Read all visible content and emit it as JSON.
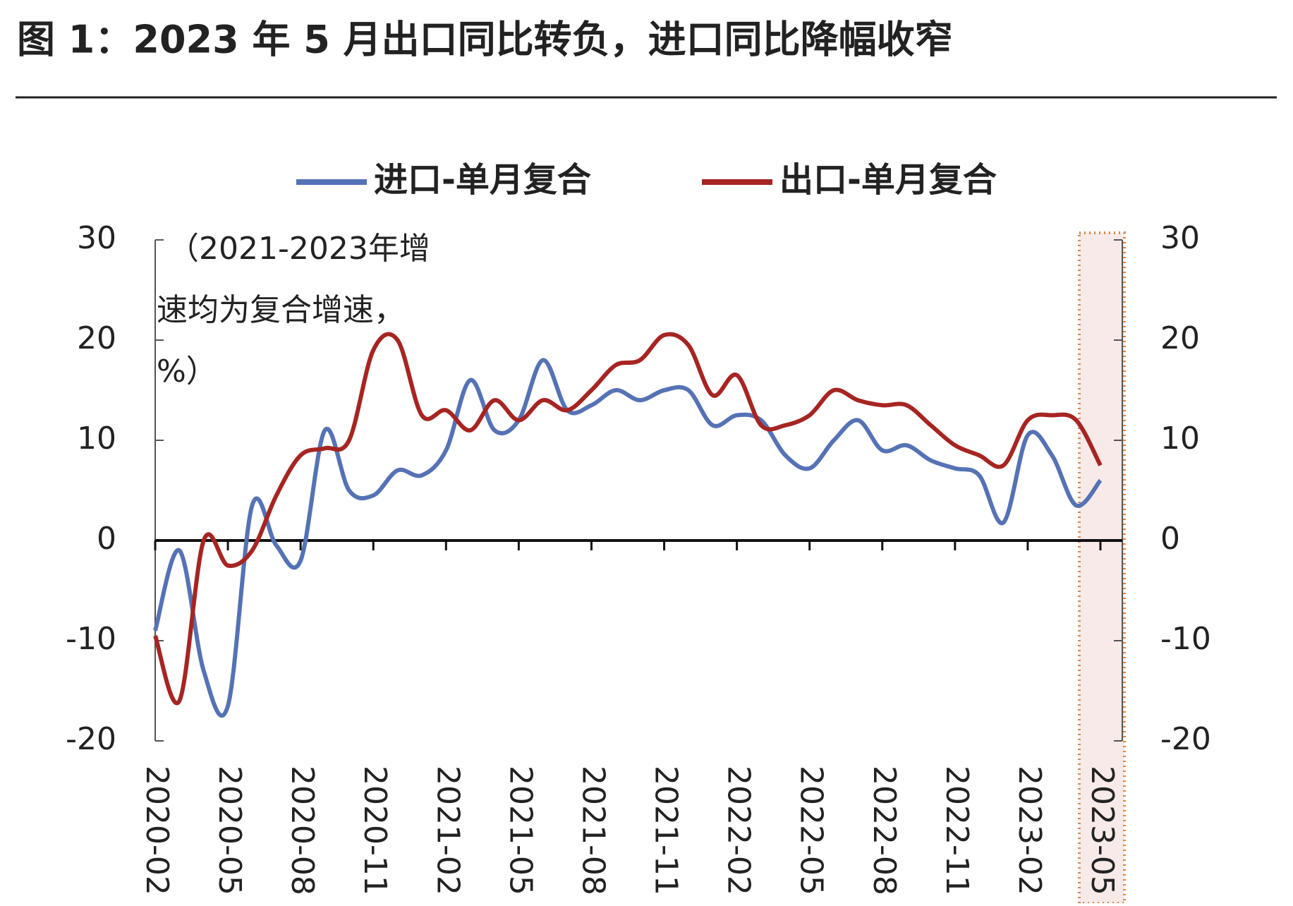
{
  "chart_data": {
    "type": "line",
    "title": "图 1：2023 年 5 月出口同比转负，进口同比降幅收窄",
    "annotation": [
      "（2021-2023年增",
      "速均为复合增速，",
      "%）"
    ],
    "categories": [
      "2020-02",
      null,
      null,
      "2020-05",
      null,
      null,
      "2020-08",
      null,
      null,
      "2020-11",
      null,
      null,
      "2021-02",
      null,
      null,
      "2021-05",
      null,
      null,
      "2021-08",
      null,
      null,
      "2021-11",
      null,
      null,
      "2022-02",
      null,
      null,
      "2022-05",
      null,
      null,
      "2022-08",
      null,
      null,
      "2022-11",
      null,
      null,
      "2023-02",
      null,
      null,
      "2023-05"
    ],
    "series": [
      {
        "name": "进口-单月复合",
        "color": "#5572b5",
        "values": [
          -9,
          -1,
          -13,
          -16.5,
          3.5,
          -0.5,
          -2,
          11,
          5,
          4.5,
          7,
          6.5,
          9,
          16,
          11,
          12,
          18,
          13,
          13.5,
          15,
          14,
          15,
          15,
          11.5,
          12.5,
          12,
          8.5,
          7.2,
          10,
          12,
          9,
          9.5,
          8,
          7.2,
          6.5,
          1.8,
          10.5,
          8.5,
          3.5,
          6
        ]
      },
      {
        "name": "出口-单月复合",
        "color": "#a62522",
        "values": [
          -9.5,
          -16,
          0,
          -2.5,
          -1,
          4.5,
          8.5,
          9.2,
          10,
          19,
          20,
          12.5,
          13,
          11,
          14,
          12,
          14,
          13,
          15,
          17.5,
          18,
          20.5,
          19.5,
          14.5,
          16.5,
          11.5,
          11.5,
          12.5,
          15,
          14,
          13.5,
          13.5,
          11.5,
          9.5,
          8.5,
          7.5,
          12,
          12.5,
          12,
          7.5
        ]
      }
    ],
    "ylim": [
      -20,
      30
    ],
    "yticks": [
      -20,
      -10,
      0,
      10,
      20,
      30
    ],
    "y2lim": [
      -20,
      30
    ],
    "y2ticks": [
      -20,
      -10,
      0,
      10,
      20,
      30
    ],
    "highlight_color": "#f2dcdb"
  }
}
